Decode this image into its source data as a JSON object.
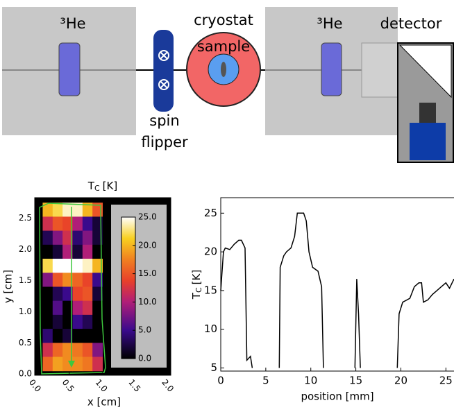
{
  "diagram": {
    "he3_left": "³He",
    "spin": "spin",
    "flipper": "flipper",
    "cryostat": "cryostat",
    "sample": "sample",
    "he3_right": "³He",
    "detector": "detector"
  },
  "chart_data": [
    {
      "type": "heatmap",
      "title": "T",
      "title_subscript": "C",
      "title_unit": "[K]",
      "xlabel": "x [cm]",
      "ylabel": "y [cm]",
      "xlim": [
        -0.02,
        2.03
      ],
      "ylim": [
        -0.02,
        2.83
      ],
      "xticks": [
        {
          "value": 0,
          "label": "0.0"
        },
        {
          "value": 0.5,
          "label": "0.5"
        },
        {
          "value": 1,
          "label": "1.0"
        },
        {
          "value": 1.5,
          "label": "1.5"
        },
        {
          "value": 2,
          "label": "2.0"
        }
      ],
      "yticks": [
        {
          "value": 0,
          "label": "0.0"
        },
        {
          "value": 0.5,
          "label": "0.5"
        },
        {
          "value": 1,
          "label": "1.0"
        },
        {
          "value": 1.5,
          "label": "1.5"
        },
        {
          "value": 2,
          "label": "2.0"
        },
        {
          "value": 2.5,
          "label": "2.5"
        }
      ],
      "extent": [
        0.1,
        1.0,
        0.05,
        2.75
      ],
      "matrix": [
        [
          20,
          22,
          24,
          24,
          20,
          15
        ],
        [
          12,
          15,
          14,
          10,
          5,
          2
        ],
        [
          3,
          8,
          12,
          4,
          8,
          2
        ],
        [
          0,
          2,
          10,
          2,
          10,
          0
        ],
        [
          22,
          25,
          25,
          25,
          24,
          20
        ],
        [
          8,
          15,
          18,
          16,
          14,
          5
        ],
        [
          0,
          3,
          5,
          14,
          15,
          2
        ],
        [
          0,
          6,
          0,
          10,
          12,
          0
        ],
        [
          0,
          2,
          0,
          5,
          3,
          0
        ],
        [
          4,
          0,
          2,
          0,
          0,
          0
        ],
        [
          12,
          16,
          18,
          17,
          15,
          8
        ],
        [
          16,
          19,
          18,
          18,
          17,
          12
        ]
      ],
      "clim": [
        0,
        25
      ],
      "cticks": [
        {
          "value": 0,
          "label": "0.0"
        },
        {
          "value": 5,
          "label": "5.0"
        },
        {
          "value": 10,
          "label": "10.0"
        },
        {
          "value": 15,
          "label": "15.0"
        },
        {
          "value": 20,
          "label": "20.0"
        },
        {
          "value": 25,
          "label": "25.0"
        }
      ]
    },
    {
      "type": "line",
      "xlabel": "position [mm]",
      "ylabel": "T",
      "ylabel_subscript": "C",
      "ylabel_unit": "[K]",
      "color": "#000000",
      "xlim": [
        0,
        25.9
      ],
      "ylim": [
        4.6,
        27
      ],
      "xticks": [
        0,
        5,
        10,
        15,
        20,
        25
      ],
      "yticks": [
        5,
        10,
        15,
        20,
        25
      ],
      "x": [
        0,
        0.3,
        0.5,
        1,
        1.5,
        2,
        2.3,
        2.7,
        2.9,
        3.3,
        3.5,
        3.6,
        6.5,
        6.6,
        7,
        7.3,
        7.8,
        8.2,
        8.5,
        9.2,
        9.5,
        9.8,
        10.2,
        10.8,
        11,
        11.2,
        11.4,
        12,
        14.9,
        15.1,
        15.3,
        15.5,
        16,
        19.6,
        19.8,
        20.2,
        21,
        21.5,
        22,
        22.3,
        22.5,
        23,
        23.5,
        24,
        24.5,
        25,
        25.4,
        25.9
      ],
      "values": [
        15,
        20,
        20.5,
        20.3,
        21,
        21.5,
        21.5,
        20.5,
        6,
        6.5,
        5,
        null,
        5,
        18,
        19.5,
        20,
        20.5,
        22,
        25,
        25,
        24,
        20,
        18,
        17.5,
        16.5,
        15.5,
        5,
        null,
        5,
        16.5,
        12,
        5,
        null,
        5,
        12,
        13.5,
        14,
        15.5,
        16,
        16,
        13.5,
        13.8,
        14.5,
        15,
        15.5,
        16,
        15.3,
        16.5
      ]
    }
  ]
}
